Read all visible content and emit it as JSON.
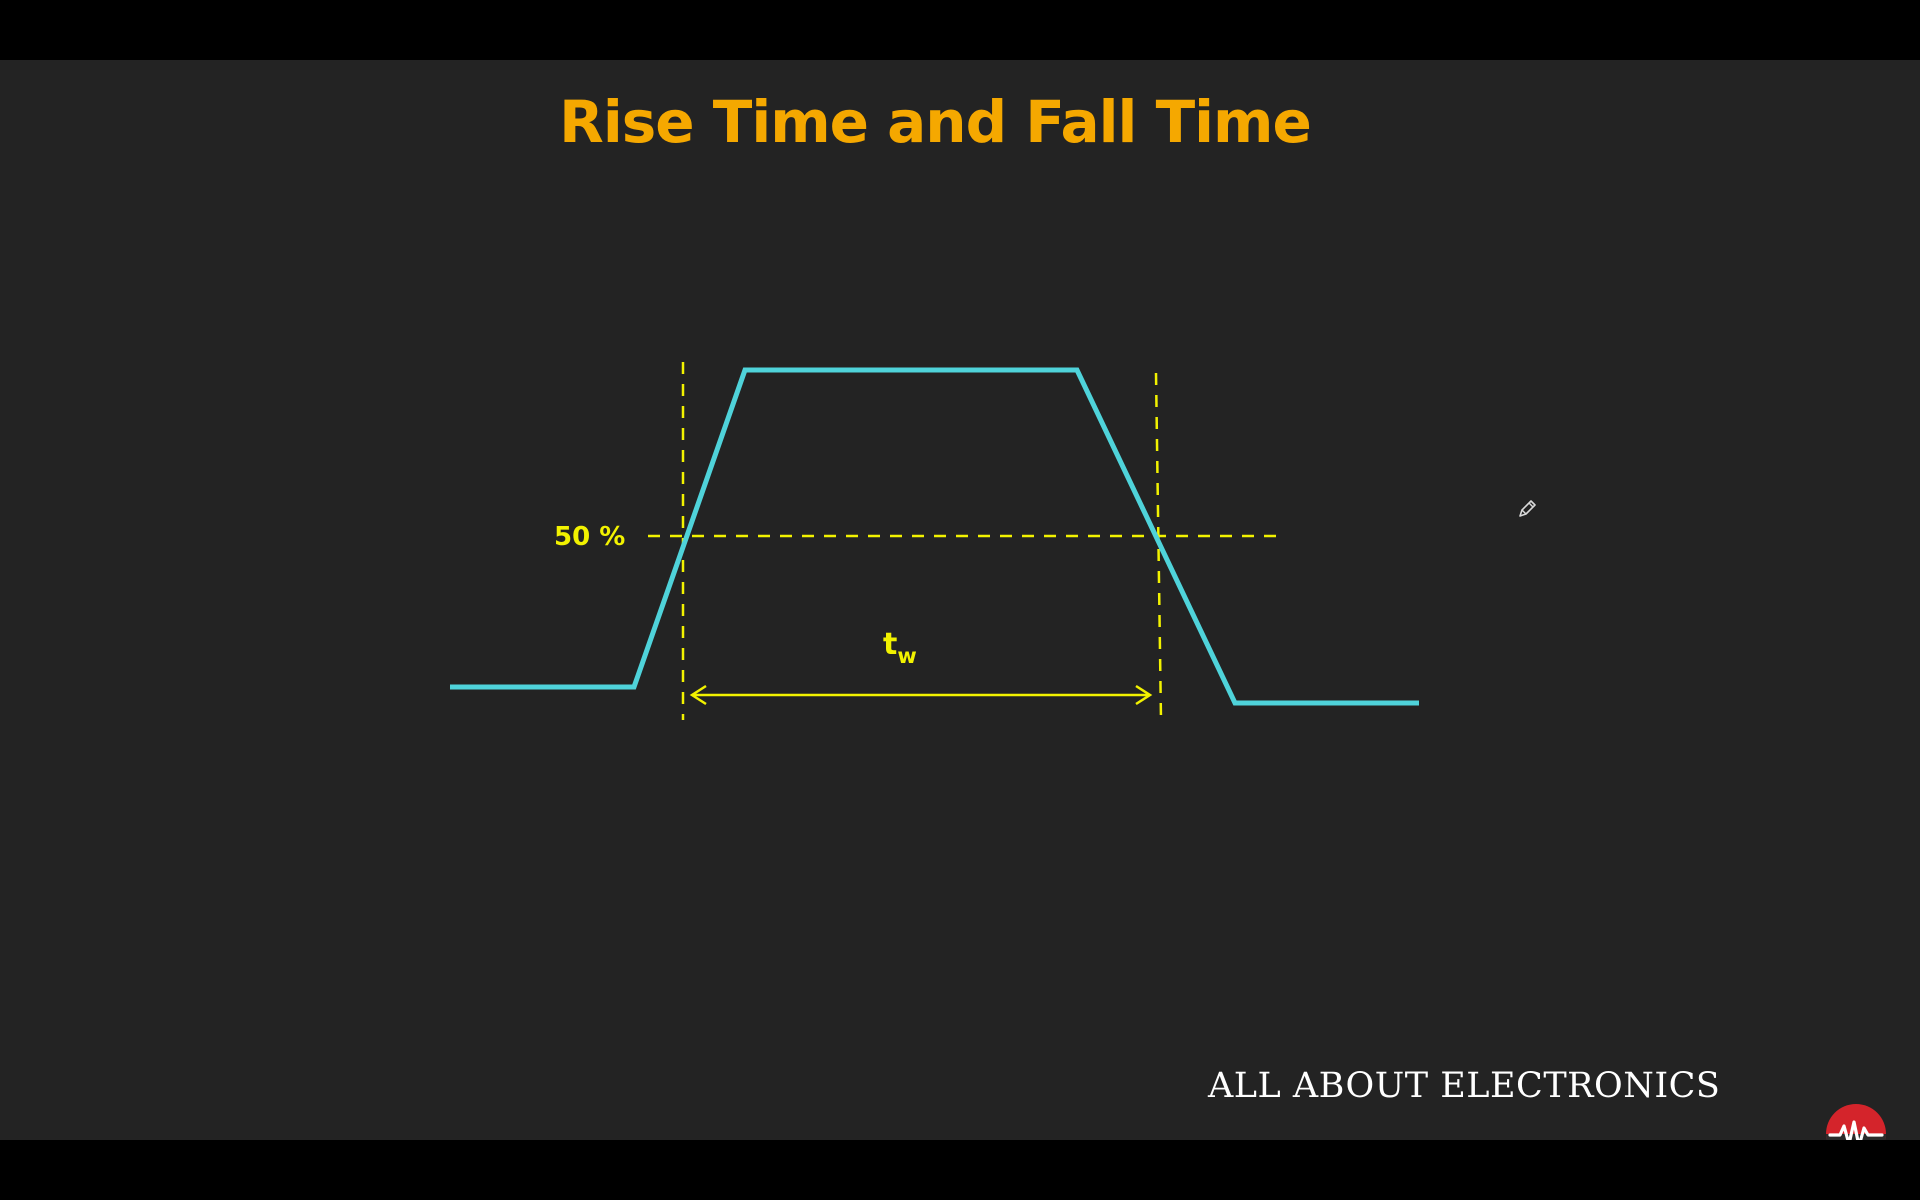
{
  "slide": {
    "title": "Rise Time and Fall Time",
    "brand": "ALL ABOUT ELECTRONICS"
  },
  "diagram": {
    "level_label": "50 %",
    "width_label_main": "t",
    "width_label_sub": "w",
    "colors": {
      "background": "#232323",
      "title": "#f5a800",
      "pulse": "#4fd3da",
      "annotation": "#f2f200",
      "brand_text": "#ffffff",
      "logo": "#d4242b"
    }
  },
  "icons": {
    "logo": "waveform-logo-icon",
    "cursor": "pen-cursor-icon"
  }
}
